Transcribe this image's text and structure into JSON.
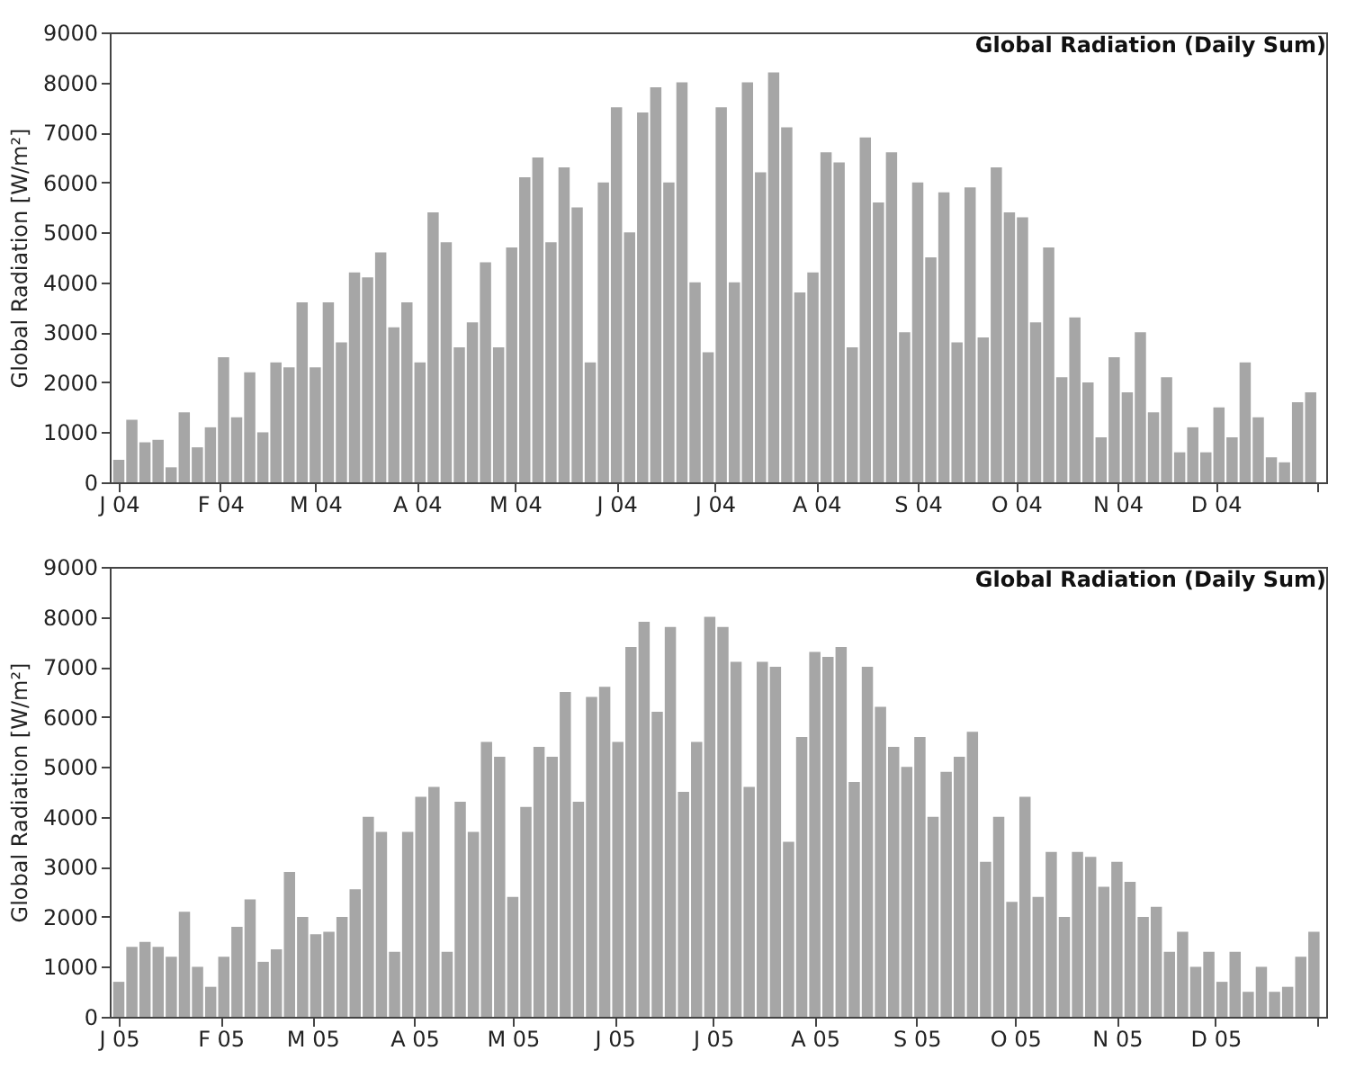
{
  "chart_data": [
    {
      "type": "bar",
      "title": "Global Radiation (Daily Sum)",
      "ylabel": "Global Radiation [W/m²]",
      "x": [
        "2004-01-01",
        "2004-01-05",
        "2004-01-09",
        "2004-01-13",
        "2004-01-17",
        "2004-01-21",
        "2004-01-25",
        "2004-01-29",
        "2004-02-02",
        "2004-02-06",
        "2004-02-10",
        "2004-02-14",
        "2004-02-18",
        "2004-02-22",
        "2004-02-26",
        "2004-03-01",
        "2004-03-05",
        "2004-03-09",
        "2004-03-13",
        "2004-03-17",
        "2004-03-21",
        "2004-03-25",
        "2004-03-29",
        "2004-04-02",
        "2004-04-06",
        "2004-04-10",
        "2004-04-14",
        "2004-04-18",
        "2004-04-22",
        "2004-04-26",
        "2004-04-30",
        "2004-05-04",
        "2004-05-08",
        "2004-05-12",
        "2004-05-16",
        "2004-05-20",
        "2004-05-24",
        "2004-05-28",
        "2004-06-01",
        "2004-06-05",
        "2004-06-09",
        "2004-06-13",
        "2004-06-17",
        "2004-06-21",
        "2004-06-25",
        "2004-06-29",
        "2004-07-03",
        "2004-07-07",
        "2004-07-11",
        "2004-07-15",
        "2004-07-19",
        "2004-07-23",
        "2004-07-27",
        "2004-07-31",
        "2004-08-04",
        "2004-08-08",
        "2004-08-12",
        "2004-08-16",
        "2004-08-20",
        "2004-08-24",
        "2004-08-28",
        "2004-09-01",
        "2004-09-05",
        "2004-09-09",
        "2004-09-13",
        "2004-09-17",
        "2004-09-21",
        "2004-09-25",
        "2004-09-29",
        "2004-10-03",
        "2004-10-07",
        "2004-10-11",
        "2004-10-15",
        "2004-10-19",
        "2004-10-23",
        "2004-10-27",
        "2004-10-31",
        "2004-11-04",
        "2004-11-08",
        "2004-11-12",
        "2004-11-16",
        "2004-11-20",
        "2004-11-24",
        "2004-11-28",
        "2004-12-02",
        "2004-12-06",
        "2004-12-10",
        "2004-12-14",
        "2004-12-18",
        "2004-12-22",
        "2004-12-26",
        "2004-12-30"
      ],
      "series": [
        {
          "color": "#a6a6a6",
          "values": [
            450,
            1250,
            800,
            850,
            300,
            1400,
            700,
            1100,
            2500,
            1300,
            2200,
            1000,
            2400,
            2300,
            3600,
            2300,
            3600,
            2800,
            4200,
            4100,
            4600,
            3100,
            3600,
            2400,
            5400,
            4800,
            2700,
            3200,
            4400,
            2700,
            4700,
            6100,
            6500,
            4800,
            6300,
            5500,
            2400,
            6000,
            7500,
            5000,
            7400,
            7900,
            6000,
            8000,
            4000,
            2600,
            7500,
            4000,
            8000,
            6200,
            8200,
            7100,
            3800,
            4200,
            6600,
            6400,
            2700,
            6900,
            5600,
            6600,
            3000,
            6000,
            4500,
            5800,
            2800,
            5900,
            2900,
            6300,
            5400,
            5300,
            3200,
            4700,
            2100,
            3300,
            2000,
            900,
            2500,
            1800,
            3000,
            1400,
            2100,
            600,
            1100,
            600,
            1500,
            900,
            2400,
            1300,
            500,
            400,
            1600,
            1800
          ]
        }
      ],
      "xlim": [
        "2004-01-01",
        "2005-01-01"
      ],
      "xticks": [
        {
          "value": "2004-01-01",
          "label": "J 04"
        },
        {
          "value": "2004-02-01",
          "label": "F 04"
        },
        {
          "value": "2004-03-01",
          "label": "M 04"
        },
        {
          "value": "2004-04-01",
          "label": "A 04"
        },
        {
          "value": "2004-05-01",
          "label": "M 04"
        },
        {
          "value": "2004-06-01",
          "label": "J 04"
        },
        {
          "value": "2004-07-01",
          "label": "J 04"
        },
        {
          "value": "2004-08-01",
          "label": "A 04"
        },
        {
          "value": "2004-09-01",
          "label": "S 04"
        },
        {
          "value": "2004-10-01",
          "label": "O 04"
        },
        {
          "value": "2004-11-01",
          "label": "N 04"
        },
        {
          "value": "2004-12-01",
          "label": "D 04"
        },
        {
          "value": "2005-01-01",
          "label": null
        }
      ],
      "ylim": [
        0,
        9000
      ],
      "yticks": [
        0,
        1000,
        2000,
        3000,
        4000,
        5000,
        6000,
        7000,
        8000,
        9000
      ]
    },
    {
      "type": "bar",
      "title": "Global Radiation (Daily Sum)",
      "ylabel": "Global Radiation [W/m²]",
      "x": [
        "2005-01-01",
        "2005-01-05",
        "2005-01-09",
        "2005-01-13",
        "2005-01-17",
        "2005-01-21",
        "2005-01-25",
        "2005-01-29",
        "2005-02-02",
        "2005-02-06",
        "2005-02-10",
        "2005-02-14",
        "2005-02-18",
        "2005-02-22",
        "2005-02-26",
        "2005-03-02",
        "2005-03-06",
        "2005-03-10",
        "2005-03-14",
        "2005-03-18",
        "2005-03-22",
        "2005-03-26",
        "2005-03-30",
        "2005-04-03",
        "2005-04-07",
        "2005-04-11",
        "2005-04-15",
        "2005-04-19",
        "2005-04-23",
        "2005-04-27",
        "2005-05-01",
        "2005-05-05",
        "2005-05-09",
        "2005-05-13",
        "2005-05-17",
        "2005-05-21",
        "2005-05-25",
        "2005-05-29",
        "2005-06-02",
        "2005-06-06",
        "2005-06-10",
        "2005-06-14",
        "2005-06-18",
        "2005-06-22",
        "2005-06-26",
        "2005-06-30",
        "2005-07-04",
        "2005-07-08",
        "2005-07-12",
        "2005-07-16",
        "2005-07-20",
        "2005-07-24",
        "2005-07-28",
        "2005-08-01",
        "2005-08-05",
        "2005-08-09",
        "2005-08-13",
        "2005-08-17",
        "2005-08-21",
        "2005-08-25",
        "2005-08-29",
        "2005-09-02",
        "2005-09-06",
        "2005-09-10",
        "2005-09-14",
        "2005-09-18",
        "2005-09-22",
        "2005-09-26",
        "2005-09-30",
        "2005-10-04",
        "2005-10-08",
        "2005-10-12",
        "2005-10-16",
        "2005-10-20",
        "2005-10-24",
        "2005-10-28",
        "2005-11-01",
        "2005-11-05",
        "2005-11-09",
        "2005-11-13",
        "2005-11-17",
        "2005-11-21",
        "2005-11-25",
        "2005-11-29",
        "2005-12-03",
        "2005-12-07",
        "2005-12-11",
        "2005-12-15",
        "2005-12-19",
        "2005-12-23",
        "2005-12-27",
        "2005-12-31"
      ],
      "series": [
        {
          "color": "#a6a6a6",
          "values": [
            700,
            1400,
            1500,
            1400,
            1200,
            2100,
            1000,
            600,
            1200,
            1800,
            2350,
            1100,
            1350,
            2900,
            2000,
            1650,
            1700,
            2000,
            2550,
            4000,
            3700,
            1300,
            3700,
            4400,
            4600,
            1300,
            4300,
            3700,
            5500,
            5200,
            2400,
            4200,
            5400,
            5200,
            6500,
            4300,
            6400,
            6600,
            5500,
            7400,
            7900,
            6100,
            7800,
            4500,
            5500,
            8000,
            7800,
            7100,
            4600,
            7100,
            7000,
            3500,
            5600,
            7300,
            7200,
            7400,
            4700,
            7000,
            6200,
            5400,
            5000,
            5600,
            4000,
            4900,
            5200,
            5700,
            3100,
            4000,
            2300,
            4400,
            2400,
            3300,
            2000,
            3300,
            3200,
            2600,
            3100,
            2700,
            2000,
            2200,
            1300,
            1700,
            1000,
            1300,
            700,
            1300,
            500,
            1000,
            500,
            600,
            1200,
            1700
          ]
        }
      ],
      "xlim": [
        "2005-01-01",
        "2006-01-01"
      ],
      "xticks": [
        {
          "value": "2005-01-01",
          "label": "J 05"
        },
        {
          "value": "2005-02-01",
          "label": "F 05"
        },
        {
          "value": "2005-03-01",
          "label": "M 05"
        },
        {
          "value": "2005-04-01",
          "label": "A 05"
        },
        {
          "value": "2005-05-01",
          "label": "M 05"
        },
        {
          "value": "2005-06-01",
          "label": "J 05"
        },
        {
          "value": "2005-07-01",
          "label": "J 05"
        },
        {
          "value": "2005-08-01",
          "label": "A 05"
        },
        {
          "value": "2005-09-01",
          "label": "S 05"
        },
        {
          "value": "2005-10-01",
          "label": "O 05"
        },
        {
          "value": "2005-11-01",
          "label": "N 05"
        },
        {
          "value": "2005-12-01",
          "label": "D 05"
        },
        {
          "value": "2006-01-01",
          "label": null
        }
      ],
      "ylim": [
        0,
        9000
      ],
      "yticks": [
        0,
        1000,
        2000,
        3000,
        4000,
        5000,
        6000,
        7000,
        8000,
        9000
      ]
    }
  ]
}
